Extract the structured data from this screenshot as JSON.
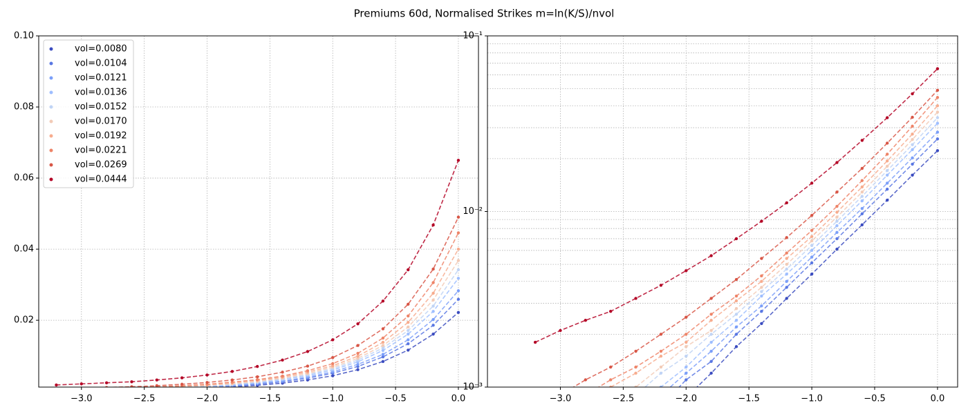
{
  "title": "Premiums 60d, Normalised Strikes m=ln(K/S)/nvol",
  "chart_data": [
    {
      "type": "line",
      "scale": "linear",
      "grid": true,
      "legend": "upper left",
      "xlim": [
        -3.34,
        0.16
      ],
      "ylim": [
        0.0012,
        0.1
      ],
      "xticks": [
        {
          "value": -3,
          "label": "−3.0"
        },
        {
          "value": -2.5,
          "label": "−2.5"
        },
        {
          "value": -2,
          "label": "−2.0"
        },
        {
          "value": -1.5,
          "label": "−1.5"
        },
        {
          "value": -1,
          "label": "−1.0"
        },
        {
          "value": -0.5,
          "label": "−0.5"
        },
        {
          "value": 0,
          "label": "0.0"
        }
      ],
      "yticks": [
        0.02,
        0.04,
        0.06,
        0.08,
        {
          "value": 0.1,
          "label": "0.10"
        }
      ],
      "series": [
        {
          "name": "vol=0.0080",
          "color": "#3b4cc0",
          "x": [
            -2,
            -1.8,
            -1.6,
            -1.4,
            -1.2,
            -1,
            -0.8,
            -0.6,
            -0.4,
            -0.2,
            0
          ],
          "values": [
            0.00087,
            0.0012,
            0.0017,
            0.0023,
            0.0032,
            0.0044,
            0.0061,
            0.0084,
            0.0116,
            0.0161,
            0.0222
          ]
        },
        {
          "name": "vol=0.0104",
          "color": "#5977e3",
          "x": [
            -2.2,
            -2,
            -1.8,
            -1.6,
            -1.4,
            -1.2,
            -1,
            -0.8,
            -0.6,
            -0.4,
            -0.2,
            0
          ],
          "values": [
            0.00078,
            0.0011,
            0.0014,
            0.002,
            0.0027,
            0.0037,
            0.0051,
            0.007,
            0.0097,
            0.0134,
            0.0186,
            0.0259
          ]
        },
        {
          "name": "vol=0.0121",
          "color": "#7b9ff9",
          "x": [
            -2.2,
            -2,
            -1.8,
            -1.6,
            -1.4,
            -1.2,
            -1,
            -0.8,
            -0.6,
            -0.4,
            -0.2,
            0
          ],
          "values": [
            0.0009,
            0.0012,
            0.0016,
            0.0022,
            0.0029,
            0.004,
            0.0055,
            0.0076,
            0.0104,
            0.0145,
            0.0202,
            0.0283
          ]
        },
        {
          "name": "vol=0.0136",
          "color": "#9ebeff",
          "x": [
            -2.4,
            -2.2,
            -2,
            -1.8,
            -1.6,
            -1.4,
            -1.2,
            -1,
            -0.8,
            -0.6,
            -0.4,
            -0.2,
            0
          ],
          "values": [
            0.00077,
            0.001,
            0.0013,
            0.0018,
            0.0024,
            0.0033,
            0.0044,
            0.006,
            0.0083,
            0.0115,
            0.0161,
            0.0225,
            0.0318
          ]
        },
        {
          "name": "vol=0.0152",
          "color": "#c0d4f5",
          "x": [
            -2.4,
            -2.2,
            -2,
            -1.8,
            -1.6,
            -1.4,
            -1.2,
            -1,
            -0.8,
            -0.6,
            -0.4,
            -0.2,
            0
          ],
          "values": [
            0.0009,
            0.0012,
            0.0015,
            0.002,
            0.0026,
            0.0035,
            0.0047,
            0.0064,
            0.0088,
            0.0122,
            0.0171,
            0.024,
            0.0342
          ]
        },
        {
          "name": "vol=0.0170",
          "color": "#f2cbb7",
          "x": [
            -2.6,
            -2.4,
            -2.2,
            -2,
            -1.8,
            -1.6,
            -1.4,
            -1.2,
            -1,
            -0.8,
            -0.6,
            -0.4,
            -0.2,
            0
          ],
          "values": [
            0.0008,
            0.001,
            0.0013,
            0.0017,
            0.0021,
            0.0028,
            0.0037,
            0.005,
            0.0068,
            0.0093,
            0.0129,
            0.0181,
            0.0257,
            0.0368
          ]
        },
        {
          "name": "vol=0.0192",
          "color": "#f7ac8e",
          "x": [
            -2.6,
            -2.4,
            -2.2,
            -2,
            -1.8,
            -1.6,
            -1.4,
            -1.2,
            -1,
            -0.8,
            -0.6,
            -0.4,
            -0.2,
            0
          ],
          "values": [
            0.001,
            0.0012,
            0.0015,
            0.0018,
            0.0024,
            0.0031,
            0.004,
            0.0054,
            0.0072,
            0.0099,
            0.0138,
            0.0194,
            0.0276,
            0.04
          ]
        },
        {
          "name": "vol=0.0221",
          "color": "#ee8468",
          "x": [
            -2.8,
            -2.6,
            -2.4,
            -2.2,
            -2,
            -1.8,
            -1.6,
            -1.4,
            -1.2,
            -1,
            -0.8,
            -0.6,
            -0.4,
            -0.2,
            0
          ],
          "values": [
            0.0009,
            0.0011,
            0.0013,
            0.0016,
            0.002,
            0.0026,
            0.0033,
            0.0043,
            0.0058,
            0.0078,
            0.0107,
            0.015,
            0.0212,
            0.0306,
            0.0446
          ]
        },
        {
          "name": "vol=0.0269",
          "color": "#d85646",
          "x": [
            -3,
            -2.8,
            -2.6,
            -2.4,
            -2.2,
            -2,
            -1.8,
            -1.6,
            -1.4,
            -1.2,
            -1,
            -0.8,
            -0.6,
            -0.4,
            -0.2,
            0
          ],
          "values": [
            0.0009,
            0.0011,
            0.0013,
            0.0016,
            0.002,
            0.0025,
            0.0032,
            0.0041,
            0.0054,
            0.0071,
            0.0095,
            0.0129,
            0.0176,
            0.0245,
            0.0344,
            0.049
          ]
        },
        {
          "name": "vol=0.0444",
          "color": "#b40426",
          "x": [
            -3.2,
            -3,
            -2.8,
            -2.6,
            -2.4,
            -2.2,
            -2,
            -1.8,
            -1.6,
            -1.4,
            -1.2,
            -1,
            -0.8,
            -0.6,
            -0.4,
            -0.2,
            0
          ],
          "values": [
            0.0018,
            0.0021,
            0.0024,
            0.0027,
            0.0032,
            0.0038,
            0.0046,
            0.0056,
            0.007,
            0.0088,
            0.0112,
            0.0145,
            0.019,
            0.0254,
            0.0342,
            0.0468,
            0.065
          ]
        }
      ]
    },
    {
      "type": "line",
      "scale": "log",
      "grid": true,
      "xlim": [
        -3.58,
        0.16
      ],
      "ylim": [
        0.001,
        0.1
      ],
      "xticks": [
        {
          "value": -3,
          "label": "−3.0"
        },
        {
          "value": -2.5,
          "label": "−2.5"
        },
        {
          "value": -2,
          "label": "−2.0"
        },
        {
          "value": -1.5,
          "label": "−1.5"
        },
        {
          "value": -1,
          "label": "−1.0"
        },
        {
          "value": -0.5,
          "label": "−0.5"
        },
        {
          "value": 0,
          "label": "0.0"
        }
      ],
      "yticks": [
        {
          "value": 0.001,
          "label": "10⁻³"
        },
        {
          "value": 0.01,
          "label": "10⁻²"
        },
        {
          "value": 0.1,
          "label": "10⁻¹"
        }
      ],
      "yminorticks": [
        0.002,
        0.003,
        0.004,
        0.005,
        0.006,
        0.007,
        0.008,
        0.009,
        0.02,
        0.03,
        0.04,
        0.05,
        0.06,
        0.07,
        0.08,
        0.09
      ],
      "series": [
        {
          "color": "#3b4cc0",
          "x": [
            -2,
            -1.8,
            -1.6,
            -1.4,
            -1.2,
            -1,
            -0.8,
            -0.6,
            -0.4,
            -0.2,
            0
          ],
          "values": [
            0.00087,
            0.0012,
            0.0017,
            0.0023,
            0.0032,
            0.0044,
            0.0061,
            0.0084,
            0.0116,
            0.0161,
            0.0222
          ]
        },
        {
          "color": "#5977e3",
          "x": [
            -2.2,
            -2,
            -1.8,
            -1.6,
            -1.4,
            -1.2,
            -1,
            -0.8,
            -0.6,
            -0.4,
            -0.2,
            0
          ],
          "values": [
            0.00078,
            0.0011,
            0.0014,
            0.002,
            0.0027,
            0.0037,
            0.0051,
            0.007,
            0.0097,
            0.0134,
            0.0186,
            0.0259
          ]
        },
        {
          "color": "#7b9ff9",
          "x": [
            -2.2,
            -2,
            -1.8,
            -1.6,
            -1.4,
            -1.2,
            -1,
            -0.8,
            -0.6,
            -0.4,
            -0.2,
            0
          ],
          "values": [
            0.0009,
            0.0012,
            0.0016,
            0.0022,
            0.0029,
            0.004,
            0.0055,
            0.0076,
            0.0104,
            0.0145,
            0.0202,
            0.0283
          ]
        },
        {
          "color": "#9ebeff",
          "x": [
            -2.4,
            -2.2,
            -2,
            -1.8,
            -1.6,
            -1.4,
            -1.2,
            -1,
            -0.8,
            -0.6,
            -0.4,
            -0.2,
            0
          ],
          "values": [
            0.00077,
            0.001,
            0.0013,
            0.0018,
            0.0024,
            0.0033,
            0.0044,
            0.006,
            0.0083,
            0.0115,
            0.0161,
            0.0225,
            0.0318
          ]
        },
        {
          "color": "#c0d4f5",
          "x": [
            -2.4,
            -2.2,
            -2,
            -1.8,
            -1.6,
            -1.4,
            -1.2,
            -1,
            -0.8,
            -0.6,
            -0.4,
            -0.2,
            0
          ],
          "values": [
            0.0009,
            0.0012,
            0.0015,
            0.002,
            0.0026,
            0.0035,
            0.0047,
            0.0064,
            0.0088,
            0.0122,
            0.0171,
            0.024,
            0.0342
          ]
        },
        {
          "color": "#f2cbb7",
          "x": [
            -2.6,
            -2.4,
            -2.2,
            -2,
            -1.8,
            -1.6,
            -1.4,
            -1.2,
            -1,
            -0.8,
            -0.6,
            -0.4,
            -0.2,
            0
          ],
          "values": [
            0.0008,
            0.001,
            0.0013,
            0.0017,
            0.0021,
            0.0028,
            0.0037,
            0.005,
            0.0068,
            0.0093,
            0.0129,
            0.0181,
            0.0257,
            0.0368
          ]
        },
        {
          "color": "#f7ac8e",
          "x": [
            -2.6,
            -2.4,
            -2.2,
            -2,
            -1.8,
            -1.6,
            -1.4,
            -1.2,
            -1,
            -0.8,
            -0.6,
            -0.4,
            -0.2,
            0
          ],
          "values": [
            0.001,
            0.0012,
            0.0015,
            0.0018,
            0.0024,
            0.0031,
            0.004,
            0.0054,
            0.0072,
            0.0099,
            0.0138,
            0.0194,
            0.0276,
            0.04
          ]
        },
        {
          "color": "#ee8468",
          "x": [
            -2.8,
            -2.6,
            -2.4,
            -2.2,
            -2,
            -1.8,
            -1.6,
            -1.4,
            -1.2,
            -1,
            -0.8,
            -0.6,
            -0.4,
            -0.2,
            0
          ],
          "values": [
            0.0009,
            0.0011,
            0.0013,
            0.0016,
            0.002,
            0.0026,
            0.0033,
            0.0043,
            0.0058,
            0.0078,
            0.0107,
            0.015,
            0.0212,
            0.0306,
            0.0446
          ]
        },
        {
          "color": "#d85646",
          "x": [
            -3,
            -2.8,
            -2.6,
            -2.4,
            -2.2,
            -2,
            -1.8,
            -1.6,
            -1.4,
            -1.2,
            -1,
            -0.8,
            -0.6,
            -0.4,
            -0.2,
            0
          ],
          "values": [
            0.0009,
            0.0011,
            0.0013,
            0.0016,
            0.002,
            0.0025,
            0.0032,
            0.0041,
            0.0054,
            0.0071,
            0.0095,
            0.0129,
            0.0176,
            0.0245,
            0.0344,
            0.049
          ]
        },
        {
          "color": "#b40426",
          "x": [
            -3.2,
            -3,
            -2.8,
            -2.6,
            -2.4,
            -2.2,
            -2,
            -1.8,
            -1.6,
            -1.4,
            -1.2,
            -1,
            -0.8,
            -0.6,
            -0.4,
            -0.2,
            0
          ],
          "values": [
            0.0018,
            0.0021,
            0.0024,
            0.0027,
            0.0032,
            0.0038,
            0.0046,
            0.0056,
            0.007,
            0.0088,
            0.0112,
            0.0145,
            0.019,
            0.0254,
            0.0342,
            0.0468,
            0.065
          ]
        }
      ]
    }
  ]
}
